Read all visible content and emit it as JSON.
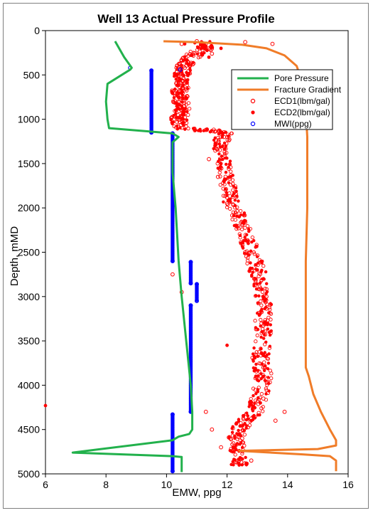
{
  "chart_data": {
    "type": "scatter",
    "title": "Well 13 Actual Pressure Profile",
    "xlabel": "EMW, ppg",
    "ylabel": "Depth, mMD",
    "xlim": [
      6,
      16
    ],
    "ylim": [
      0,
      5000
    ],
    "y_inverted": true,
    "x_ticks": [
      6,
      8,
      10,
      12,
      14,
      16
    ],
    "y_ticks": [
      0,
      500,
      1000,
      1500,
      2000,
      2500,
      3000,
      3500,
      4000,
      4500,
      5000
    ],
    "grid": false,
    "legend_position": "top-right",
    "series": [
      {
        "name": "Pore Pressure",
        "kind": "line",
        "color": "#22b14c",
        "points": [
          [
            8.3,
            120
          ],
          [
            8.6,
            300
          ],
          [
            8.85,
            420
          ],
          [
            8.8,
            440
          ],
          [
            8.05,
            600
          ],
          [
            8.0,
            800
          ],
          [
            8.05,
            1000
          ],
          [
            8.1,
            1100
          ],
          [
            9.5,
            1140
          ],
          [
            10.2,
            1160
          ],
          [
            10.4,
            1200
          ],
          [
            10.2,
            1260
          ],
          [
            10.2,
            1600
          ],
          [
            10.3,
            2000
          ],
          [
            10.35,
            2300
          ],
          [
            10.4,
            2600
          ],
          [
            10.5,
            3000
          ],
          [
            10.65,
            3500
          ],
          [
            10.8,
            4000
          ],
          [
            10.85,
            4300
          ],
          [
            10.85,
            4500
          ],
          [
            10.75,
            4550
          ],
          [
            10.4,
            4580
          ],
          [
            10.2,
            4620
          ],
          [
            6.9,
            4760
          ],
          [
            10.2,
            4800
          ],
          [
            10.5,
            4810
          ],
          [
            10.5,
            4980
          ]
        ]
      },
      {
        "name": "Fracture Gradient",
        "kind": "line",
        "color": "#f07c28",
        "points": [
          [
            9.9,
            120
          ],
          [
            11.0,
            130
          ],
          [
            12.5,
            160
          ],
          [
            13.3,
            200
          ],
          [
            13.9,
            280
          ],
          [
            14.3,
            400
          ],
          [
            14.5,
            600
          ],
          [
            14.6,
            900
          ],
          [
            14.65,
            1200
          ],
          [
            14.65,
            2000
          ],
          [
            14.6,
            2600
          ],
          [
            14.6,
            3000
          ],
          [
            14.6,
            3500
          ],
          [
            14.6,
            3800
          ],
          [
            14.7,
            3900
          ],
          [
            14.85,
            4100
          ],
          [
            15.1,
            4300
          ],
          [
            15.4,
            4500
          ],
          [
            15.6,
            4620
          ],
          [
            15.6,
            4680
          ],
          [
            15.0,
            4720
          ],
          [
            12.4,
            4740
          ],
          [
            14.5,
            4780
          ],
          [
            15.4,
            4800
          ],
          [
            15.6,
            4850
          ],
          [
            15.6,
            4970
          ]
        ]
      },
      {
        "name": "ECD1(lbm/gal)",
        "kind": "scatter",
        "marker": "open-circle",
        "color": "#ff0000",
        "points": [
          [
            10.5,
            150
          ],
          [
            11.0,
            120
          ],
          [
            12.6,
            130
          ],
          [
            13.5,
            150
          ],
          [
            11.5,
            260
          ],
          [
            10.7,
            350
          ],
          [
            10.6,
            420
          ],
          [
            10.5,
            480
          ],
          [
            10.4,
            600
          ],
          [
            10.6,
            750
          ],
          [
            10.5,
            900
          ],
          [
            11.3,
            1120
          ],
          [
            11.9,
            1200
          ],
          [
            11.4,
            1450
          ],
          [
            11.7,
            1650
          ],
          [
            12.0,
            1950
          ],
          [
            12.3,
            2200
          ],
          [
            12.6,
            2500
          ],
          [
            10.2,
            2750
          ],
          [
            12.9,
            2800
          ],
          [
            10.5,
            2950
          ],
          [
            13.3,
            3000
          ],
          [
            13.2,
            3400
          ],
          [
            13.2,
            3800
          ],
          [
            13.2,
            4150
          ],
          [
            11.3,
            4300
          ],
          [
            13.9,
            4300
          ],
          [
            13.6,
            4400
          ],
          [
            11.5,
            4500
          ],
          [
            12.5,
            4600
          ],
          [
            11.8,
            4700
          ],
          [
            12.8,
            4850
          ]
        ]
      },
      {
        "name": "ECD2(lbm/gal)",
        "kind": "scatter",
        "marker": "filled-circle",
        "color": "#ff0000",
        "points": [
          [
            10.6,
            150
          ],
          [
            11.2,
            140
          ],
          [
            11.8,
            200
          ],
          [
            11.4,
            300
          ],
          [
            10.5,
            450
          ],
          [
            10.45,
            560
          ],
          [
            10.5,
            700
          ],
          [
            10.5,
            850
          ],
          [
            10.5,
            1000
          ],
          [
            11.8,
            1150
          ],
          [
            11.6,
            1300
          ],
          [
            11.8,
            1500
          ],
          [
            11.9,
            1700
          ],
          [
            12.1,
            1900
          ],
          [
            12.4,
            2100
          ],
          [
            12.7,
            2400
          ],
          [
            13.0,
            2700
          ],
          [
            13.2,
            3000
          ],
          [
            13.3,
            3300
          ],
          [
            13.2,
            3650
          ],
          [
            12.0,
            3550
          ],
          [
            13.2,
            3900
          ],
          [
            13.1,
            4200
          ],
          [
            6.0,
            4230
          ],
          [
            12.8,
            4400
          ],
          [
            12.4,
            4550
          ],
          [
            12.2,
            4700
          ],
          [
            12.4,
            4900
          ]
        ]
      },
      {
        "name": "MWI(ppg)",
        "kind": "scatter",
        "marker": "open-circle",
        "color": "#0000ff",
        "points": [
          [
            8.8,
            420
          ],
          [
            9.5,
            450
          ],
          [
            9.5,
            1150
          ],
          [
            10.2,
            1160
          ],
          [
            10.2,
            2600
          ],
          [
            10.8,
            2610
          ],
          [
            10.8,
            2850
          ],
          [
            11.0,
            2860
          ],
          [
            11.0,
            3050
          ],
          [
            10.8,
            3100
          ],
          [
            10.8,
            4300
          ],
          [
            10.2,
            4330
          ],
          [
            10.2,
            4970
          ],
          [
            10.45,
            440
          ]
        ]
      }
    ],
    "dense_segments": [
      {
        "series": "MWI(ppg)",
        "x": 9.5,
        "from": 450,
        "to": 1150
      },
      {
        "series": "MWI(ppg)",
        "x": 10.2,
        "from": 1160,
        "to": 2600
      },
      {
        "series": "MWI(ppg)",
        "x": 10.8,
        "from": 2610,
        "to": 2850
      },
      {
        "series": "MWI(ppg)",
        "x": 11.0,
        "from": 2860,
        "to": 3050
      },
      {
        "series": "MWI(ppg)",
        "x": 10.8,
        "from": 3100,
        "to": 4300
      },
      {
        "series": "MWI(ppg)",
        "x": 10.2,
        "from": 4330,
        "to": 4970
      }
    ],
    "ecd_trend": [
      [
        11.2,
        130
      ],
      [
        11.3,
        200
      ],
      [
        10.8,
        300
      ],
      [
        10.6,
        400
      ],
      [
        10.5,
        500
      ],
      [
        10.5,
        600
      ],
      [
        10.4,
        700
      ],
      [
        10.5,
        800
      ],
      [
        10.5,
        900
      ],
      [
        10.4,
        1000
      ],
      [
        10.5,
        1100
      ],
      [
        11.9,
        1150
      ],
      [
        11.8,
        1300
      ],
      [
        11.9,
        1500
      ],
      [
        12.0,
        1700
      ],
      [
        12.1,
        1900
      ],
      [
        12.4,
        2100
      ],
      [
        12.6,
        2300
      ],
      [
        12.8,
        2500
      ],
      [
        13.0,
        2700
      ],
      [
        13.1,
        2900
      ],
      [
        13.2,
        3100
      ],
      [
        13.2,
        3300
      ],
      [
        13.2,
        3500
      ],
      [
        13.1,
        3700
      ],
      [
        13.2,
        3900
      ],
      [
        13.1,
        4100
      ],
      [
        12.9,
        4300
      ],
      [
        12.5,
        4450
      ],
      [
        12.3,
        4600
      ],
      [
        12.3,
        4750
      ],
      [
        12.4,
        4900
      ]
    ]
  }
}
